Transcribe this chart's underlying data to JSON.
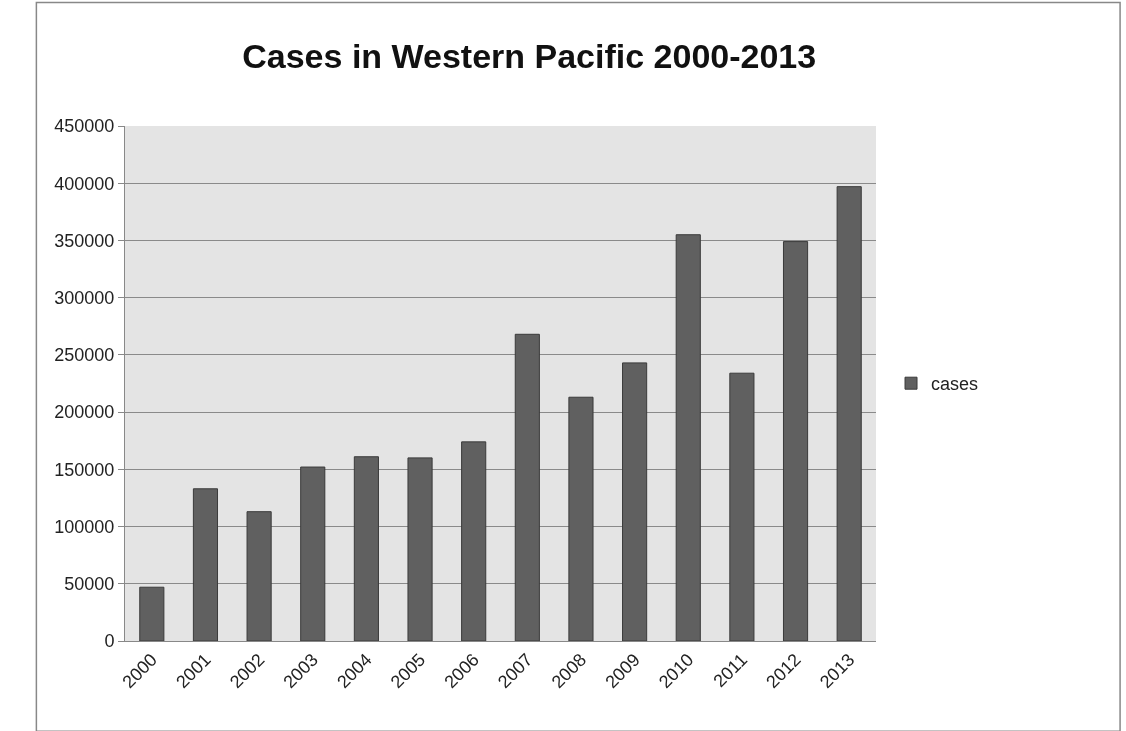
{
  "chart_data": {
    "type": "bar",
    "title": "Cases in Western Pacific 2000-2013",
    "categories": [
      "2000",
      "2001",
      "2002",
      "2003",
      "2004",
      "2005",
      "2006",
      "2007",
      "2008",
      "2009",
      "2010",
      "2011",
      "2012",
      "2013"
    ],
    "series": [
      {
        "name": "cases",
        "color": "#606060",
        "values": [
          47000,
          133000,
          113000,
          152000,
          161000,
          160000,
          174000,
          268000,
          213000,
          243000,
          355000,
          234000,
          349000,
          397000
        ]
      }
    ],
    "ylim": [
      0,
      450000
    ],
    "yticks": [
      0,
      50000,
      100000,
      150000,
      200000,
      250000,
      300000,
      350000,
      400000,
      450000
    ],
    "grid": "y",
    "legend": "right"
  }
}
